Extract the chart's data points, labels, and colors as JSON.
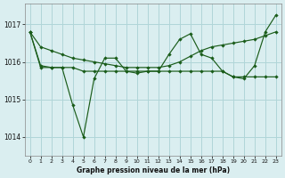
{
  "background_color": "#daeef0",
  "grid_color": "#b0d5d8",
  "line_color": "#1a5c1a",
  "x_ticks": [
    0,
    1,
    2,
    3,
    4,
    5,
    6,
    7,
    8,
    9,
    10,
    11,
    12,
    13,
    14,
    15,
    16,
    17,
    18,
    19,
    20,
    21,
    22,
    23
  ],
  "y_ticks": [
    1014,
    1015,
    1016,
    1017
  ],
  "ylim": [
    1013.5,
    1017.55
  ],
  "xlim": [
    -0.5,
    23.5
  ],
  "xlabel": "Graphe pression niveau de la mer (hPa)",
  "series_jagged": [
    1016.8,
    1015.85,
    1015.85,
    1015.85,
    1014.85,
    1014.0,
    1015.55,
    1016.1,
    1016.1,
    1015.75,
    1015.7,
    1015.75,
    1015.75,
    1016.2,
    1016.6,
    1016.75,
    1016.2,
    1016.1,
    1015.75,
    1015.6,
    1015.55,
    1015.9,
    1016.8,
    1017.25
  ],
  "series_flat": [
    1016.8,
    1015.9,
    1015.85,
    1015.85,
    1015.85,
    1015.75,
    1015.75,
    1015.75,
    1015.75,
    1015.75,
    1015.75,
    1015.75,
    1015.75,
    1015.75,
    1015.75,
    1015.75,
    1015.75,
    1015.75,
    1015.75,
    1015.6,
    1015.6,
    1015.6,
    1015.6,
    1015.6
  ],
  "series_top": [
    1016.8,
    1016.4,
    1016.3,
    1016.2,
    1016.1,
    1016.05,
    1016.0,
    1015.95,
    1015.9,
    1015.85,
    1015.85,
    1015.85,
    1015.85,
    1015.9,
    1016.0,
    1016.15,
    1016.3,
    1016.4,
    1016.45,
    1016.5,
    1016.55,
    1016.6,
    1016.7,
    1016.8
  ]
}
